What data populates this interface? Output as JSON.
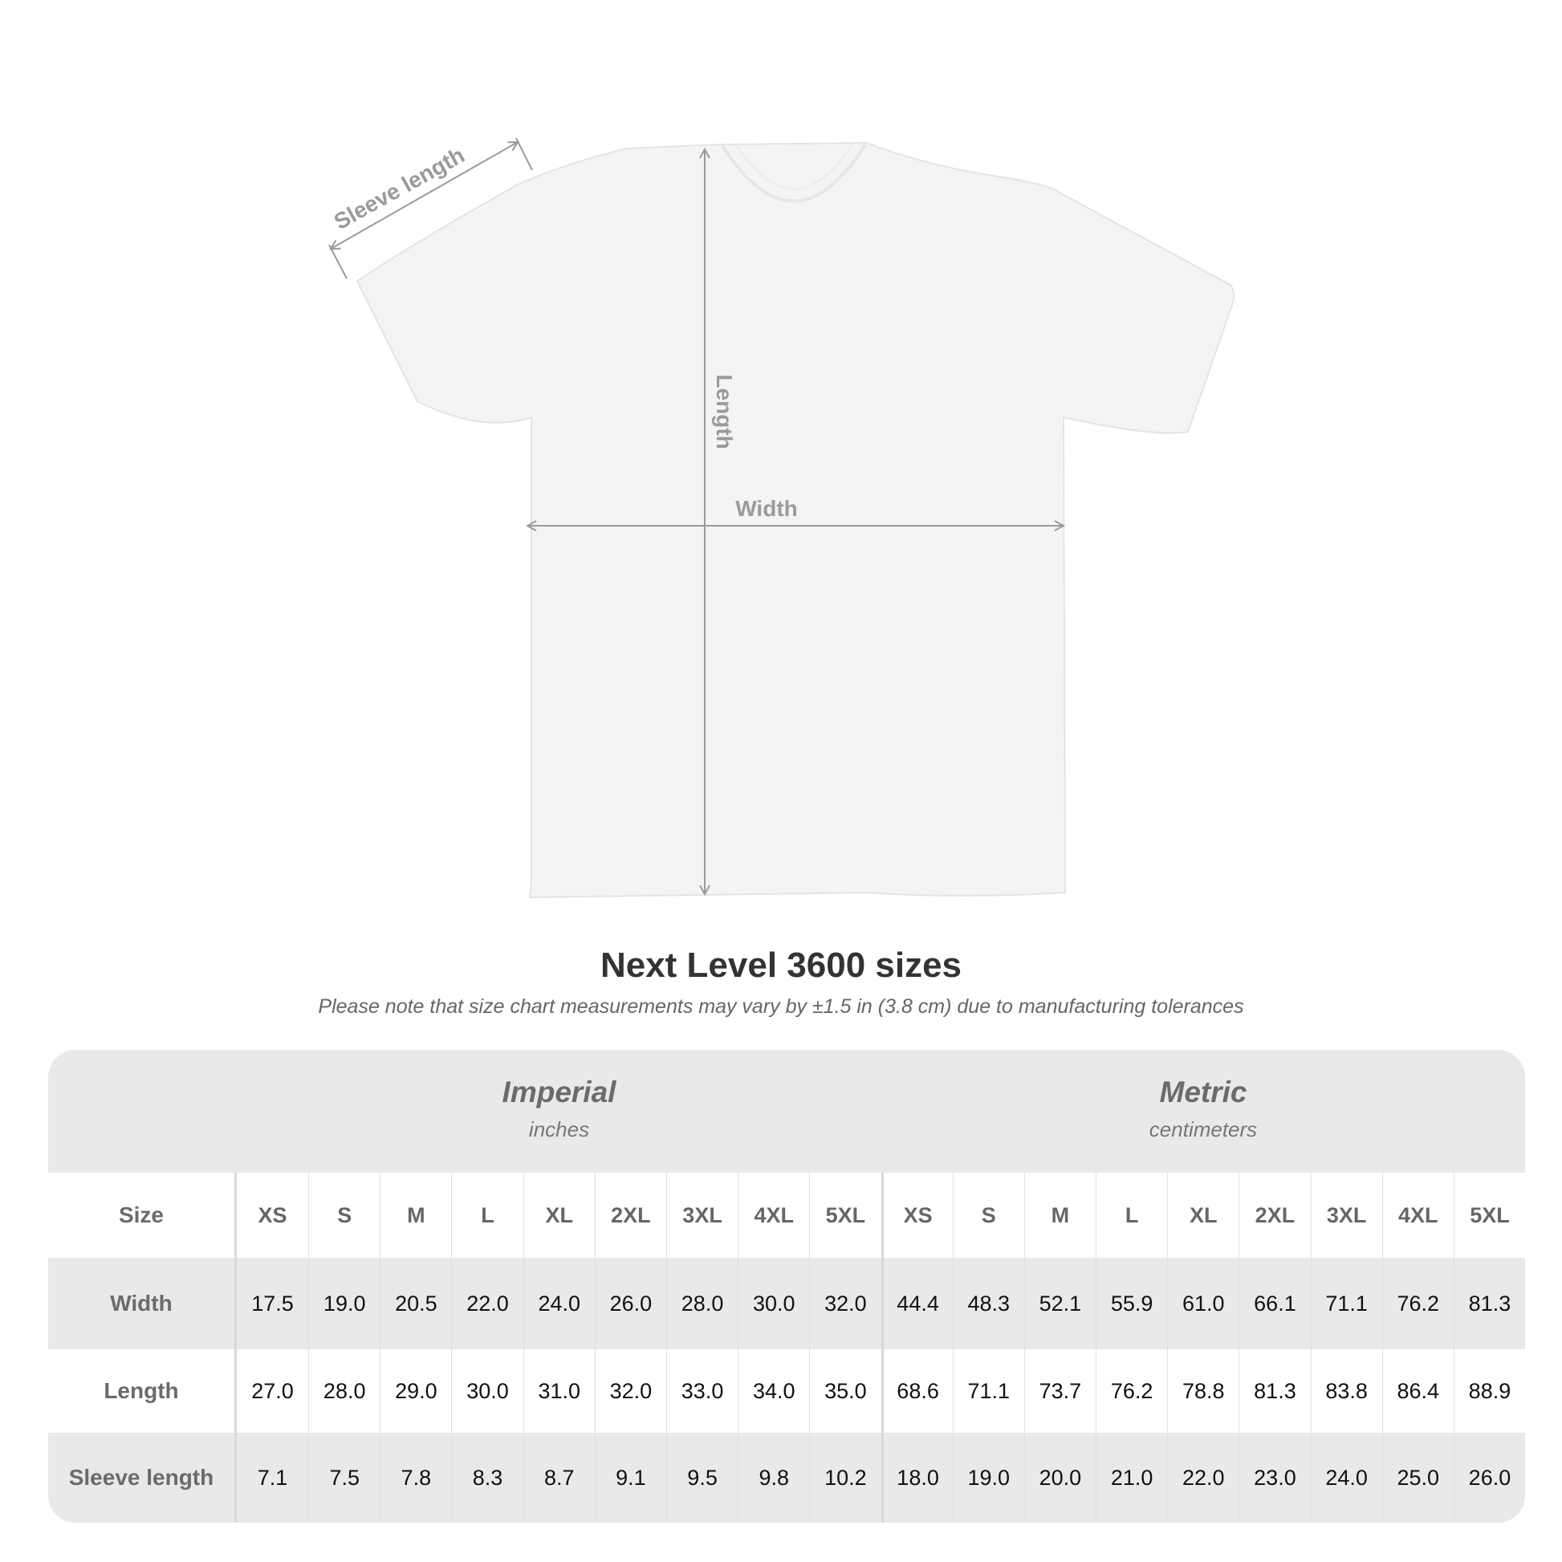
{
  "diagram": {
    "labels": {
      "sleeve": "Sleeve length",
      "length": "Length",
      "width": "Width"
    },
    "shirt_color": "#f4f4f4",
    "arrow_color": "#9a9a9a"
  },
  "title": "Next Level 3600 sizes",
  "subtitle": "Please note that size chart measurements may vary by ±1.5 in (3.8 cm) due to manufacturing tolerances",
  "table": {
    "imperial": {
      "label": "Imperial",
      "unit": "inches"
    },
    "metric": {
      "label": "Metric",
      "unit": "centimeters"
    },
    "size_label": "Size",
    "sizes": [
      "XS",
      "S",
      "M",
      "L",
      "XL",
      "2XL",
      "3XL",
      "4XL",
      "5XL"
    ],
    "rows": [
      {
        "label": "Width",
        "imperial": [
          "17.5",
          "19.0",
          "20.5",
          "22.0",
          "24.0",
          "26.0",
          "28.0",
          "30.0",
          "32.0"
        ],
        "metric": [
          "44.4",
          "48.3",
          "52.1",
          "55.9",
          "61.0",
          "66.1",
          "71.1",
          "76.2",
          "81.3"
        ]
      },
      {
        "label": "Length",
        "imperial": [
          "27.0",
          "28.0",
          "29.0",
          "30.0",
          "31.0",
          "32.0",
          "33.0",
          "34.0",
          "35.0"
        ],
        "metric": [
          "68.6",
          "71.1",
          "73.7",
          "76.2",
          "78.8",
          "81.3",
          "83.8",
          "86.4",
          "88.9"
        ]
      },
      {
        "label": "Sleeve length",
        "imperial": [
          "7.1",
          "7.5",
          "7.8",
          "8.3",
          "8.7",
          "9.1",
          "9.5",
          "9.8",
          "10.2"
        ],
        "metric": [
          "18.0",
          "19.0",
          "20.0",
          "21.0",
          "22.0",
          "23.0",
          "24.0",
          "25.0",
          "26.0"
        ]
      }
    ]
  }
}
